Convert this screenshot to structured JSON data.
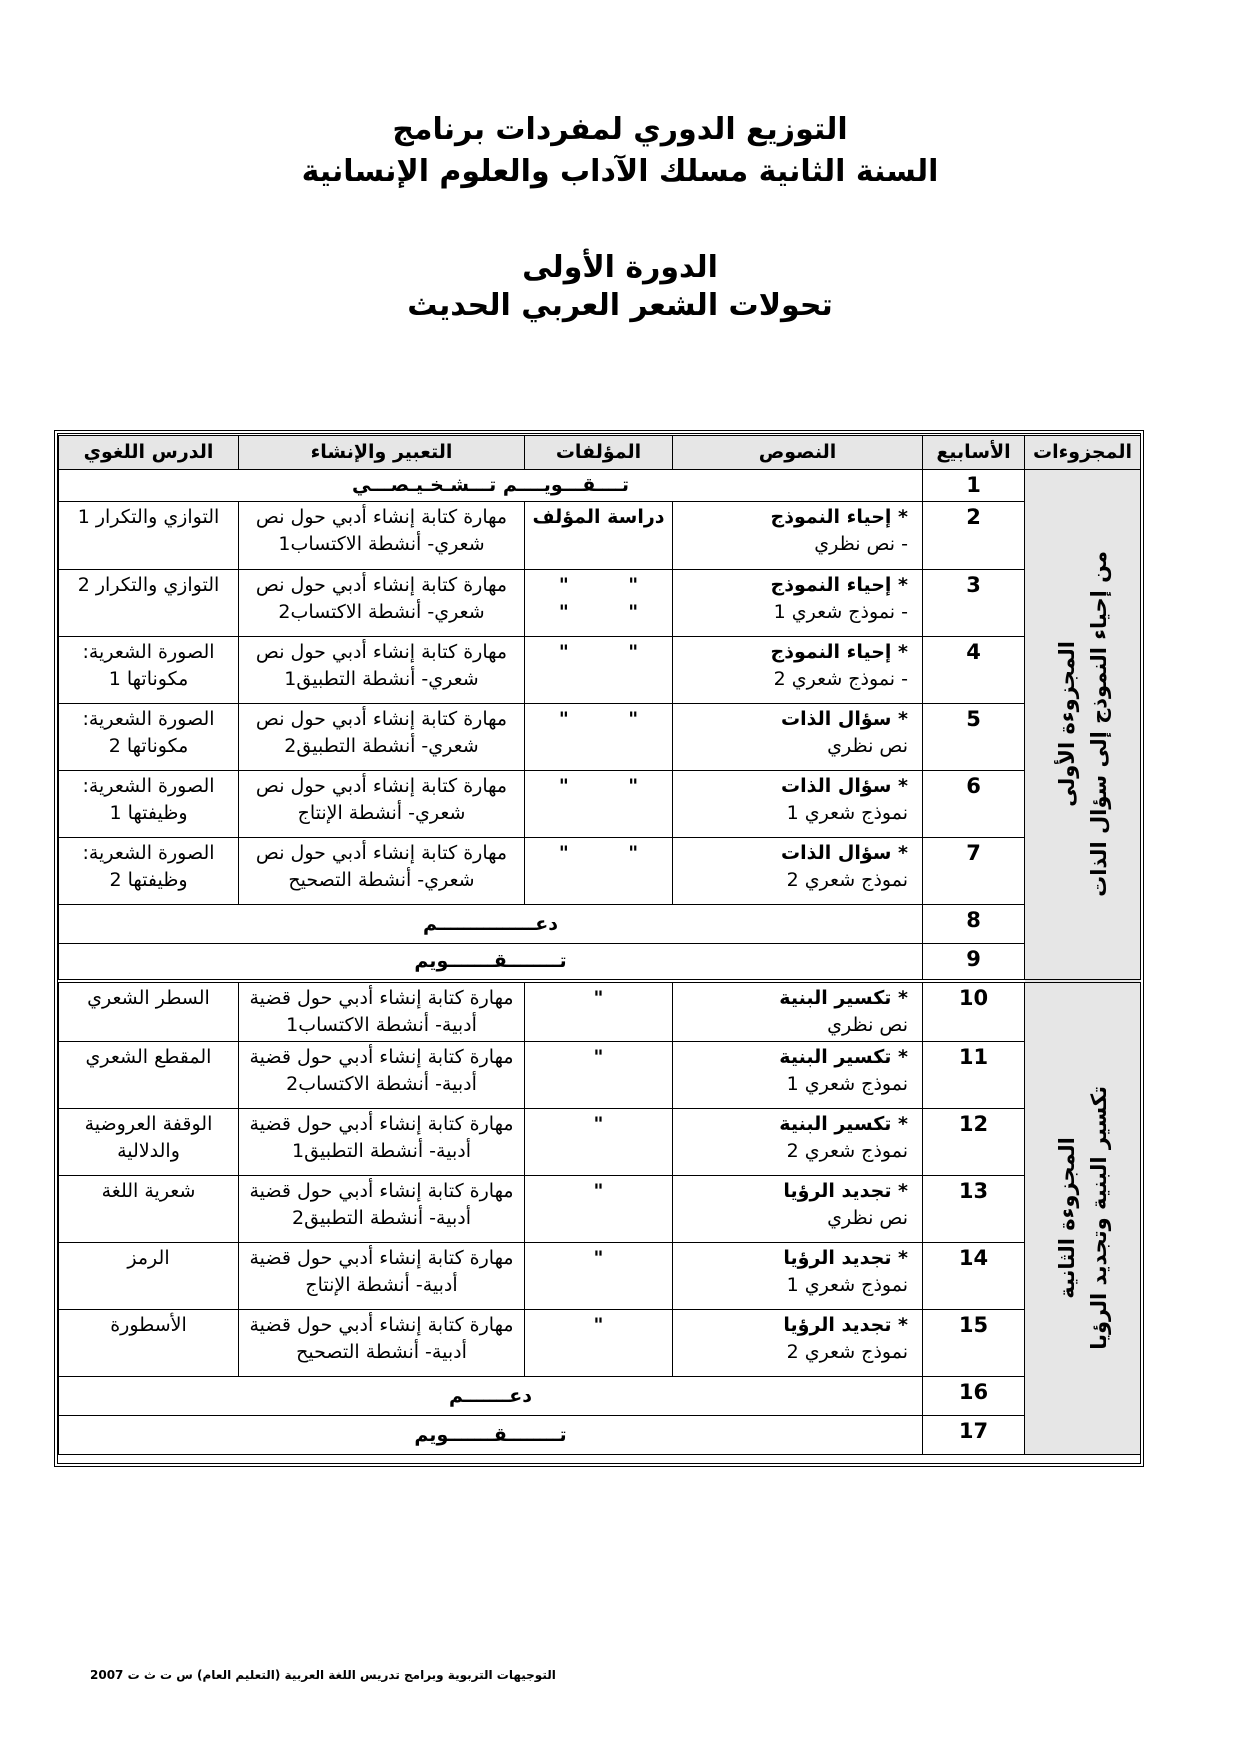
{
  "title": {
    "line1": "التوزيع الدوري لمفردات برنامج",
    "line2": "السنة الثانية مسلك الآداب والعلوم الإنسانية",
    "line3": "الدورة الأولى",
    "line4": "تحولات الشعر العربي الحديث"
  },
  "table": {
    "headers": [
      "المجزوءات",
      "الأسابيع",
      "النصوص",
      "المؤلفات",
      "التعبير والإنشاء",
      "الدرس اللغوي"
    ],
    "groups": [
      "المجزوءة الأولى\nمن إحياء النموذج إلى سؤال الذات",
      "المجزوءة الثانية\nتكسير البنية وتجديد الرؤيا"
    ],
    "rows": [
      {
        "week": "1",
        "span": "تــــقـــويــــم تـــشـخـيـصـــي"
      },
      {
        "week": "2",
        "text_title": "* إحياء النموذج",
        "text_sub": "- نص نظري",
        "works": "دراسة المؤلف",
        "expr": "مهارة كتابة إنشاء أدبي حول نص شعري- أنشطة الاكتساب1",
        "lang": "التوازي والتكرار 1"
      },
      {
        "week": "3",
        "text_title": "* إحياء النموذج",
        "text_sub": "- نموذج شعري 1",
        "works": "\"         \"\n\"         \"",
        "expr": "مهارة كتابة إنشاء أدبي حول نص شعري- أنشطة الاكتساب2",
        "lang": "التوازي والتكرار 2"
      },
      {
        "week": "4",
        "text_title": "* إحياء النموذج",
        "text_sub": "- نموذج شعري 2",
        "works": "\"         \"",
        "expr": "مهارة كتابة إنشاء أدبي حول نص شعري- أنشطة التطبيق1",
        "lang": "الصورة الشعرية: مكوناتها 1"
      },
      {
        "week": "5",
        "text_title": "* سؤال الذات",
        "text_sub": "نص نظري",
        "works": "\"         \"",
        "expr": "مهارة كتابة إنشاء أدبي حول نص شعري- أنشطة التطبيق2",
        "lang": "الصورة الشعرية: مكوناتها 2"
      },
      {
        "week": "6",
        "text_title": "* سؤال الذات",
        "text_sub": "نموذج شعري 1",
        "works": "\"         \"",
        "expr": "مهارة كتابة إنشاء أدبي حول نص شعري- أنشطة الإنتاج",
        "lang": "الصورة الشعرية: وظيفتها 1"
      },
      {
        "week": "7",
        "text_title": "* سؤال الذات",
        "text_sub": "نموذج شعري 2",
        "works": "\"         \"",
        "expr": "مهارة كتابة إنشاء أدبي حول نص شعري- أنشطة التصحيح",
        "lang": "الصورة الشعرية: وظيفتها 2"
      },
      {
        "week": "8",
        "span": "دعـــــــــــــــم"
      },
      {
        "week": "9",
        "span": "تــــــــقـــــــويم"
      },
      {
        "week": "10",
        "text_title": "* تكسير البنية",
        "text_sub": "نص نظري",
        "works": "\"",
        "expr": "مهارة كتابة إنشاء أدبي حول قضية أدبية- أنشطة الاكتساب1",
        "lang": "السطر الشعري"
      },
      {
        "week": "11",
        "text_title": "* تكسير البنية",
        "text_sub": "نموذج شعري 1",
        "works": "\"",
        "expr": "مهارة كتابة إنشاء أدبي حول قضية أدبية- أنشطة الاكتساب2",
        "lang": "المقطع الشعري"
      },
      {
        "week": "12",
        "text_title": "* تكسير البنية",
        "text_sub": "نموذج شعري 2",
        "works": "\"",
        "expr": "مهارة كتابة إنشاء أدبي حول قضية أدبية- أنشطة التطبيق1",
        "lang": "الوقفة العروضية والدلالية"
      },
      {
        "week": "13",
        "text_title": "* تجديد الرؤيا",
        "text_sub": "نص نظري",
        "works": "\"",
        "expr": "مهارة كتابة إنشاء أدبي حول قضية أدبية- أنشطة التطبيق2",
        "lang": "شعرية اللغة"
      },
      {
        "week": "14",
        "text_title": "* تجديد الرؤيا",
        "text_sub": "نموذج شعري 1",
        "works": "\"",
        "expr": "مهارة كتابة إنشاء أدبي حول قضية أدبية- أنشطة الإنتاج",
        "lang": "الرمز"
      },
      {
        "week": "15",
        "text_title": "* تجديد الرؤيا",
        "text_sub": "نموذج شعري 2",
        "works": "\"",
        "expr": "مهارة كتابة إنشاء أدبي حول قضية أدبية- أنشطة التصحيح",
        "lang": "الأسطورة"
      },
      {
        "week": "16",
        "span": "دعـــــــم"
      },
      {
        "week": "17",
        "span": "تــــــــقـــــــويم"
      }
    ]
  },
  "footer": "التوجيهات التربوية وبرامج تدريس اللغة العربية (التعليم العام) س ت ث ت 2007"
}
